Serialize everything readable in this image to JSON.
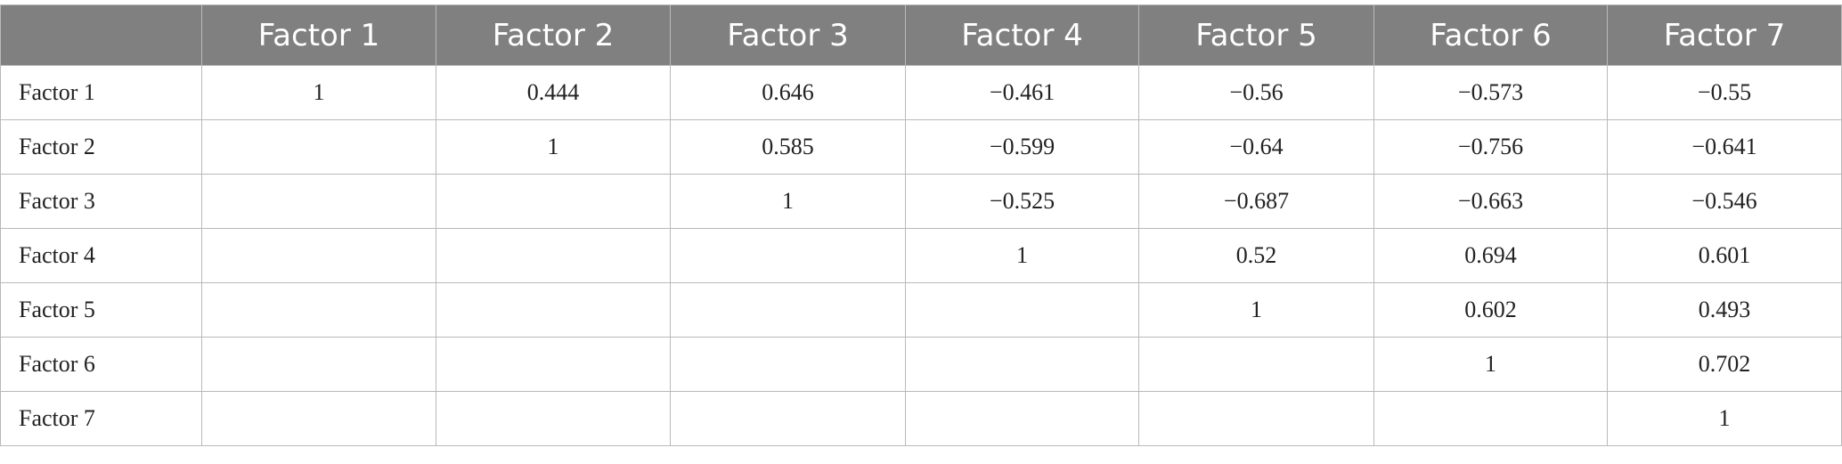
{
  "table": {
    "header": [
      "Factor 1",
      "Factor 2",
      "Factor 3",
      "Factor 4",
      "Factor 5",
      "Factor 6",
      "Factor 7"
    ],
    "rows": [
      {
        "label": "Factor 1",
        "cells": [
          "1",
          "0.444",
          "0.646",
          "−0.461",
          "−0.56",
          "−0.573",
          "−0.55"
        ]
      },
      {
        "label": "Factor 2",
        "cells": [
          null,
          "1",
          "0.585",
          "−0.599",
          "−0.64",
          "−0.756",
          "−0.641"
        ]
      },
      {
        "label": "Factor 3",
        "cells": [
          null,
          null,
          "1",
          "−0.525",
          "−0.687",
          "−0.663",
          "−0.546"
        ]
      },
      {
        "label": "Factor 4",
        "cells": [
          null,
          null,
          null,
          "1",
          "0.52",
          "0.694",
          "0.601"
        ]
      },
      {
        "label": "Factor 5",
        "cells": [
          null,
          null,
          null,
          null,
          "1",
          "0.602",
          "0.493"
        ]
      },
      {
        "label": "Factor 6",
        "cells": [
          null,
          null,
          null,
          null,
          null,
          "1",
          "0.702"
        ]
      },
      {
        "label": "Factor 7",
        "cells": [
          null,
          null,
          null,
          null,
          null,
          null,
          "1"
        ]
      }
    ]
  }
}
